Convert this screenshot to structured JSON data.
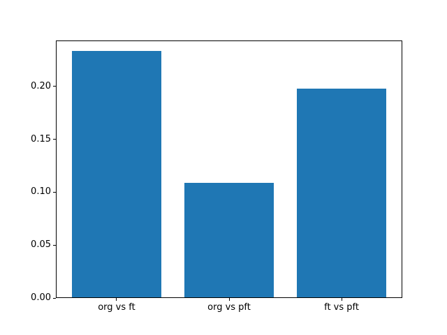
{
  "figure": {
    "background": "#ffffff",
    "text_color": "#000000",
    "axis_color": "#000000"
  },
  "chart_data": {
    "type": "bar",
    "title": "",
    "xlabel": "",
    "ylabel": "",
    "categories": [
      "org vs ft",
      "org vs pft",
      "ft vs pft"
    ],
    "values": [
      0.233,
      0.108,
      0.197
    ],
    "bar_color": "#1f77b4",
    "ytick_labels": [
      "0.00",
      "0.05",
      "0.10",
      "0.15",
      "0.20"
    ],
    "ytick_values": [
      0.0,
      0.05,
      0.1,
      0.15,
      0.2
    ],
    "ylim": [
      0,
      0.2435
    ],
    "xlim": [
      -0.54,
      2.54
    ],
    "bar_width": 0.8,
    "grid": false,
    "legend": null
  }
}
